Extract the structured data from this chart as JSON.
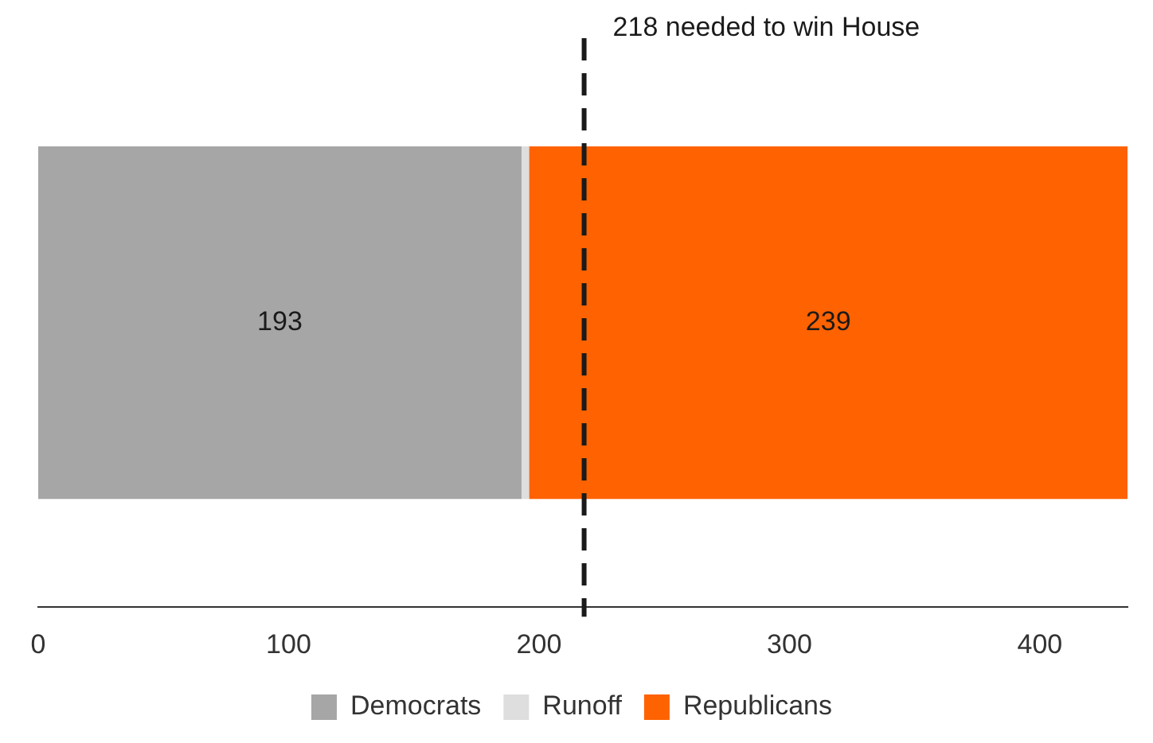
{
  "chart_data": {
    "type": "bar",
    "orientation": "horizontal",
    "stacked": true,
    "categories": [
      null
    ],
    "series": [
      {
        "name": "Democrats",
        "color": "#a6a6a6",
        "values": [
          193
        ],
        "value_labels": [
          "193"
        ]
      },
      {
        "name": "Runoff",
        "color": "#dedede",
        "values": [
          3
        ]
      },
      {
        "name": "Republicans",
        "color": "#ff6200",
        "values": [
          239
        ],
        "value_labels": [
          "239"
        ]
      }
    ],
    "xlim": [
      0,
      435
    ],
    "xticks": [
      0,
      100,
      200,
      300,
      400
    ],
    "grid": false,
    "legend": "bottom",
    "ref_lines": [
      {
        "axis": "x",
        "value": 218,
        "label": "218 needed to win House",
        "color": "#1a1a1a",
        "line_style": "dashed"
      }
    ]
  }
}
